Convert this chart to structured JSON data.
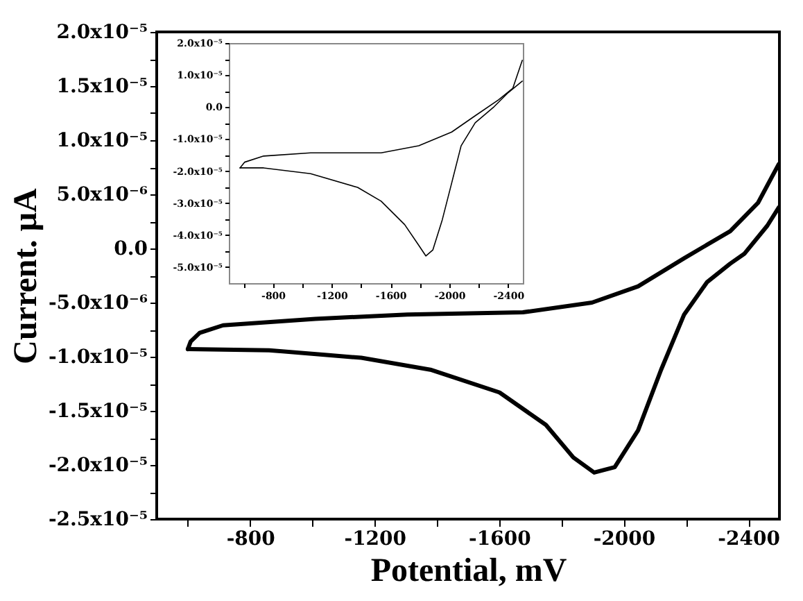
{
  "chart_data": [
    {
      "type": "line",
      "xlabel": "Potential, mV",
      "ylabel": "Current. µA",
      "xlim": [
        -500,
        -2500
      ],
      "ylim": [
        -2.5e-05,
        2e-05
      ],
      "xticks": [
        {
          "value": -600,
          "label": null
        },
        -800,
        {
          "value": -1000,
          "label": null
        },
        -1200,
        {
          "value": -1400,
          "label": null
        },
        -1600,
        {
          "value": -1800,
          "label": null
        },
        -2000,
        {
          "value": -2200,
          "label": null
        },
        -2400
      ],
      "yticks": [
        {
          "value": -2.5e-05,
          "label": "-2.5x10⁻⁵"
        },
        {
          "value": -2.25e-05,
          "label": null
        },
        {
          "value": -2e-05,
          "label": "-2.0x10⁻⁵"
        },
        {
          "value": -1.75e-05,
          "label": null
        },
        {
          "value": -1.5e-05,
          "label": "-1.5x10⁻⁵"
        },
        {
          "value": -1.25e-05,
          "label": null
        },
        {
          "value": -1e-05,
          "label": "-1.0x10⁻⁵"
        },
        {
          "value": -7.5e-06,
          "label": null
        },
        {
          "value": -5e-06,
          "label": "-5.0x10⁻⁶"
        },
        {
          "value": -2.5e-06,
          "label": null
        },
        {
          "value": 0,
          "label": "0.0"
        },
        {
          "value": 2.5e-06,
          "label": null
        },
        {
          "value": 5e-06,
          "label": "5.0x10⁻⁶"
        },
        {
          "value": 7.5e-06,
          "label": null
        },
        {
          "value": 1e-05,
          "label": "1.0x10⁻⁵"
        },
        {
          "value": 1.25e-05,
          "label": null
        },
        {
          "value": 1.5e-05,
          "label": "1.5x10⁻⁵"
        },
        {
          "value": 1.75e-05,
          "label": null
        },
        {
          "value": 2e-05,
          "label": "2.0x10⁻⁵"
        }
      ],
      "series": [
        {
          "color": "#000000",
          "line_style": "solid",
          "x": [
            -600,
            -861,
            -1157,
            -1379,
            -1601,
            -1750,
            -1838,
            -1905,
            -1971,
            -2046,
            -2120,
            -2194,
            -2268,
            -2342,
            -2387,
            -2461,
            -2498
          ],
          "values": [
            -9.3e-06,
            -9.4e-06,
            -1.01e-05,
            -1.12e-05,
            -1.33e-05,
            -1.63e-05,
            -1.93e-05,
            -2.07e-05,
            -2.02e-05,
            -1.68e-05,
            -1.12e-05,
            -6.1e-06,
            -3.1e-06,
            -1.4e-06,
            -5e-07,
            2.1e-06,
            3.8e-06
          ]
        },
        {
          "color": "#000000",
          "line_style": "solid",
          "x": [
            -2498,
            -2431,
            -2342,
            -2194,
            -2046,
            -1898,
            -1676,
            -1305,
            -1009,
            -713,
            -638,
            -609,
            -600
          ],
          "values": [
            7.8e-06,
            4.2e-06,
            1.6e-06,
            -9e-07,
            -3.5e-06,
            -5e-06,
            -5.9e-06,
            -6.1e-06,
            -6.5e-06,
            -7.1e-06,
            -7.8e-06,
            -8.6e-06,
            -9.3e-06
          ]
        }
      ]
    },
    {
      "type": "line",
      "xlim": [
        -500,
        -2500
      ],
      "ylim": [
        -5.5e-05,
        2e-05
      ],
      "xticks": [
        {
          "value": -600,
          "label": null
        },
        -800,
        {
          "value": -1000,
          "label": null
        },
        -1200,
        {
          "value": -1400,
          "label": null
        },
        -1600,
        {
          "value": -1800,
          "label": null
        },
        -2000,
        {
          "value": -2200,
          "label": null
        },
        -2400
      ],
      "yticks": [
        {
          "value": -5e-05,
          "label": "-5.0x10⁻⁵"
        },
        {
          "value": -4.5e-05,
          "label": null
        },
        {
          "value": -4e-05,
          "label": "-4.0x10⁻⁵"
        },
        {
          "value": -3.5e-05,
          "label": null
        },
        {
          "value": -3e-05,
          "label": "-3.0x10⁻⁵"
        },
        {
          "value": -2.5e-05,
          "label": null
        },
        {
          "value": -2e-05,
          "label": "-2.0x10⁻⁵"
        },
        {
          "value": -1.5e-05,
          "label": null
        },
        {
          "value": -1e-05,
          "label": "-1.0x10⁻⁵"
        },
        {
          "value": -5e-06,
          "label": null
        },
        {
          "value": 0,
          "label": "0.0"
        },
        {
          "value": 5e-06,
          "label": null
        },
        {
          "value": 1e-05,
          "label": "1.0x10⁻⁵"
        },
        {
          "value": 1.5e-05,
          "label": null
        },
        {
          "value": 2e-05,
          "label": "2.0x10⁻⁵"
        }
      ],
      "series": [
        {
          "color": "#000000",
          "line_style": "solid",
          "x": [
            -576,
            -737,
            -1056,
            -1376,
            -1536,
            -1696,
            -1792,
            -1840,
            -1888,
            -1952,
            -2016,
            -2080,
            -2176,
            -2304,
            -2400,
            -2496
          ],
          "values": [
            -1.9e-05,
            -1.9e-05,
            -2.08e-05,
            -2.51e-05,
            -2.94e-05,
            -3.67e-05,
            -4.32e-05,
            -4.65e-05,
            -4.46e-05,
            -3.52e-05,
            -2.37e-05,
            -1.21e-05,
            -4.9e-06,
            1e-07,
            4.5e-06,
            8.1e-06
          ]
        },
        {
          "color": "#000000",
          "line_style": "solid",
          "x": [
            -2496,
            -2432,
            -2336,
            -2176,
            -2016,
            -1792,
            -1536,
            -1056,
            -737,
            -608,
            -576
          ],
          "values": [
            1.46e-05,
            5.9e-06,
            2.3e-06,
            -2.7e-06,
            -7.8e-06,
            -1.21e-05,
            -1.43e-05,
            -1.43e-05,
            -1.53e-05,
            -1.72e-05,
            -1.9e-05
          ]
        }
      ]
    }
  ]
}
